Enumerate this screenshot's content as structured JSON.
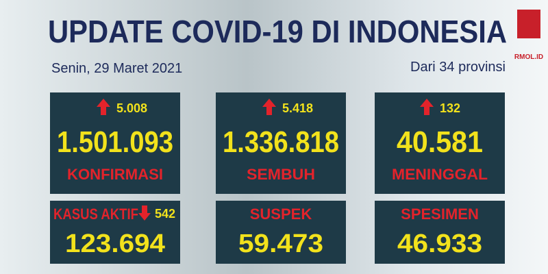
{
  "header": {
    "title": "UPDATE COVID-19 DI INDONESIA",
    "date": "Senin, 29 Maret 2021",
    "note": "Dari 34 provinsi",
    "logo": "RMOL.ID"
  },
  "cards": [
    {
      "change": "5.008",
      "value": "1.501.093",
      "label": "KONFIRMASI"
    },
    {
      "change": "5.418",
      "value": "1.336.818",
      "label": "SEMBUH"
    },
    {
      "change": "132",
      "value": "40.581",
      "label": "MENINGGAL"
    },
    {
      "label": "KASUS AKTIF",
      "change": "542",
      "value": "123.694"
    },
    {
      "label": "SUSPEK",
      "value": "59.473"
    },
    {
      "label": "SPESIMEN",
      "value": "46.933"
    }
  ]
}
